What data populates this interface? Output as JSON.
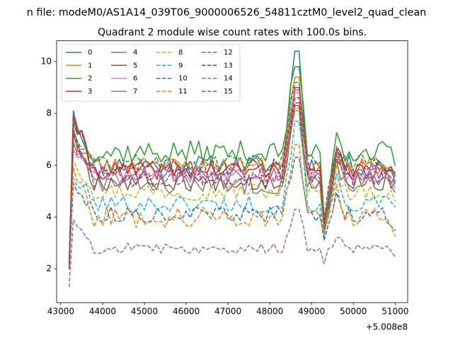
{
  "suptitle": "n file: modeM0/AS1A14_039T06_9000006526_54811cztM0_level2_quad_clean",
  "chart_data": {
    "type": "line",
    "title": "Quadrant 2 module wise count rates with 100.0s bins.",
    "xlabel": "",
    "ylabel": "",
    "x_offset_label": "+5.008e8",
    "xlim": [
      42900,
      51300
    ],
    "ylim": [
      0.7,
      10.8
    ],
    "xticks": [
      43000,
      44000,
      45000,
      46000,
      47000,
      48000,
      49000,
      50000,
      51000
    ],
    "yticks": [
      2,
      4,
      6,
      8,
      10
    ],
    "legend_position": "top-left",
    "legend_columns": 4,
    "x_start": 43200,
    "x_step": 100,
    "n_points": 79,
    "series": [
      {
        "name": "0",
        "color": "#1f77b4",
        "dash": "solid",
        "base": 6.0,
        "noise": 0.4,
        "first": 2.2,
        "peak": 8.1,
        "spike": 10.4,
        "dip": 3.6,
        "hump": 6.8,
        "seed": 11
      },
      {
        "name": "1",
        "color": "#ff7f0e",
        "dash": "solid",
        "base": 6.0,
        "noise": 0.3,
        "first": 2.1,
        "peak": 6.8,
        "spike": 9.4,
        "dip": 3.8,
        "hump": 6.5,
        "seed": 23
      },
      {
        "name": "2",
        "color": "#2ca02c",
        "dash": "solid",
        "base": 6.5,
        "noise": 0.45,
        "first": 2.3,
        "peak": 7.6,
        "spike": 9.8,
        "dip": 4.0,
        "hump": 7.4,
        "seed": 37
      },
      {
        "name": "3",
        "color": "#d62728",
        "dash": "solid",
        "base": 5.8,
        "noise": 0.35,
        "first": 2.0,
        "peak": 7.9,
        "spike": 9.0,
        "dip": 3.7,
        "hump": 6.4,
        "seed": 41
      },
      {
        "name": "4",
        "color": "#9467bd",
        "dash": "solid",
        "base": 5.7,
        "noise": 0.35,
        "first": 2.1,
        "peak": 7.4,
        "spike": 8.9,
        "dip": 3.9,
        "hump": 6.7,
        "seed": 53
      },
      {
        "name": "5",
        "color": "#8c564b",
        "dash": "solid",
        "base": 5.4,
        "noise": 0.4,
        "first": 2.0,
        "peak": 7.2,
        "spike": 8.3,
        "dip": 3.5,
        "hump": 6.2,
        "seed": 67
      },
      {
        "name": "6",
        "color": "#e377c2",
        "dash": "solid",
        "base": 5.6,
        "noise": 0.3,
        "first": 2.1,
        "peak": 6.6,
        "spike": 8.8,
        "dip": 3.8,
        "hump": 6.6,
        "seed": 71
      },
      {
        "name": "7",
        "color": "#7f7f7f",
        "dash": "solid",
        "base": 5.3,
        "noise": 0.4,
        "first": 2.0,
        "peak": 6.9,
        "spike": 8.1,
        "dip": 3.6,
        "hump": 6.3,
        "seed": 83
      },
      {
        "name": "8",
        "color": "#bcbd22",
        "dash": "dashed",
        "base": 5.0,
        "noise": 0.35,
        "first": 2.0,
        "peak": 6.2,
        "spike": 8.2,
        "dip": 3.4,
        "hump": 5.9,
        "seed": 97
      },
      {
        "name": "9",
        "color": "#17becf",
        "dash": "dashed",
        "base": 4.5,
        "noise": 0.35,
        "first": 2.0,
        "peak": 5.5,
        "spike": 7.7,
        "dip": 3.2,
        "hump": 5.4,
        "seed": 101
      },
      {
        "name": "10",
        "color": "#1f77b4",
        "dash": "dashed",
        "base": 4.1,
        "noise": 0.3,
        "first": 2.0,
        "peak": 5.3,
        "spike": 6.3,
        "dip": 3.1,
        "hump": 4.9,
        "seed": 113
      },
      {
        "name": "11",
        "color": "#ff7f0e",
        "dash": "dashed",
        "base": 4.0,
        "noise": 0.4,
        "first": 2.0,
        "peak": 5.9,
        "spike": 6.8,
        "dip": 3.3,
        "hump": 5.0,
        "seed": 127
      },
      {
        "name": "12",
        "color": "#2ca02c",
        "dash": "dashed",
        "base": 6.1,
        "noise": 0.35,
        "first": 2.2,
        "peak": 7.3,
        "spike": 9.2,
        "dip": 3.9,
        "hump": 6.9,
        "seed": 131
      },
      {
        "name": "13",
        "color": "#d62728",
        "dash": "dashed",
        "base": 5.9,
        "noise": 0.35,
        "first": 2.1,
        "peak": 7.8,
        "spike": 8.6,
        "dip": 3.8,
        "hump": 6.6,
        "seed": 149
      },
      {
        "name": "14",
        "color": "#9467bd",
        "dash": "dashed",
        "base": 2.8,
        "noise": 0.2,
        "first": 1.3,
        "peak": 3.9,
        "spike": 4.3,
        "dip": 2.2,
        "hump": 3.4,
        "seed": 157
      },
      {
        "name": "15",
        "color": "#8c564b",
        "dash": "dashed",
        "base": 5.5,
        "noise": 0.35,
        "first": 2.0,
        "peak": 7.3,
        "spike": 8.4,
        "dip": 3.6,
        "hump": 6.2,
        "seed": 163
      }
    ]
  }
}
